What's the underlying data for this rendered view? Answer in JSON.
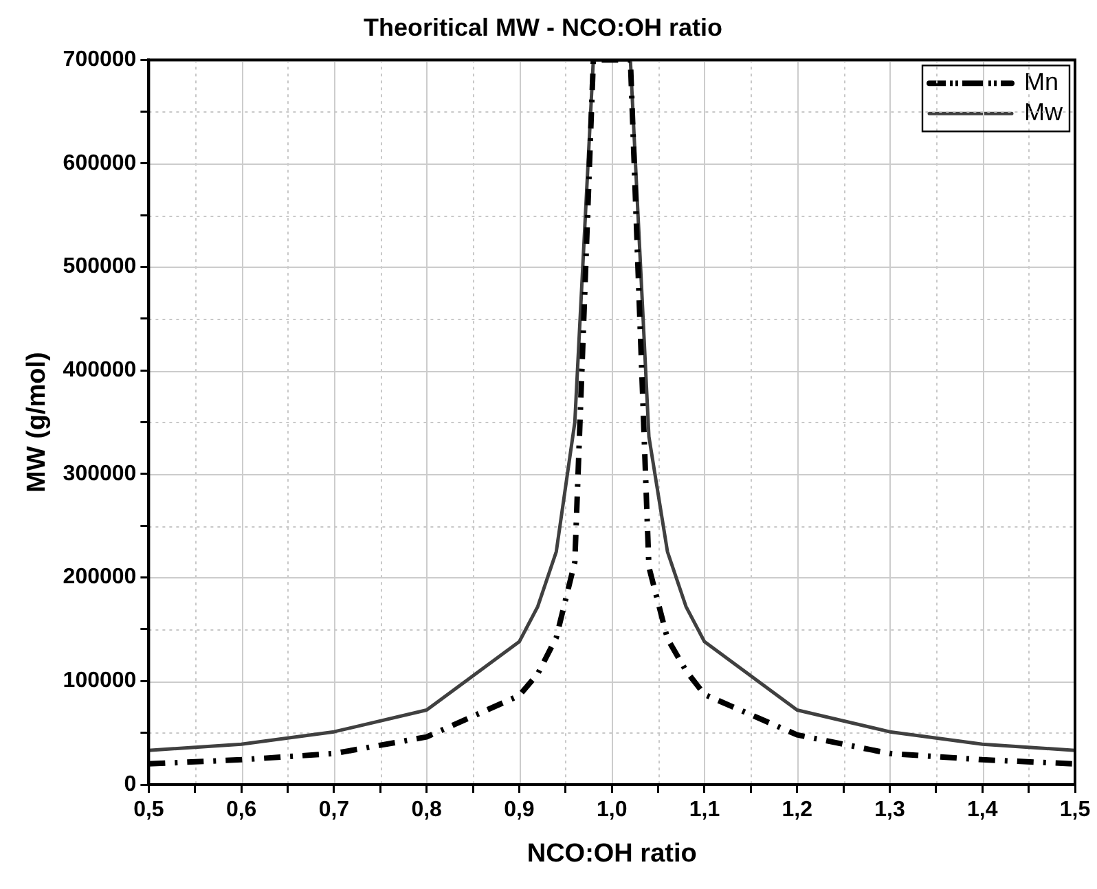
{
  "chart_data": {
    "type": "line",
    "title": "Theoritical MW - NCO:OH ratio",
    "xlabel": "NCO:OH ratio",
    "ylabel": "MW (g/mol)",
    "x": [
      0.5,
      0.6,
      0.7,
      0.8,
      0.9,
      0.92,
      0.94,
      0.96,
      0.98,
      1.02,
      1.04,
      1.06,
      1.08,
      1.1,
      1.2,
      1.3,
      1.4,
      1.5
    ],
    "series": [
      {
        "name": "Mn",
        "color": "#000000",
        "line_style": "dashed",
        "values": [
          20000,
          24000,
          30000,
          46000,
          86000,
          107000,
          142000,
          215000,
          700000,
          700000,
          210000,
          141000,
          110000,
          87000,
          48000,
          30000,
          24000,
          20000
        ]
      },
      {
        "name": "Mw",
        "color": "#404040",
        "line_style": "solid",
        "values": [
          33000,
          39000,
          51000,
          72000,
          138000,
          172000,
          225000,
          350000,
          700000,
          700000,
          336000,
          225000,
          172000,
          138000,
          72000,
          51000,
          39000,
          33000
        ]
      }
    ],
    "xlim": [
      0.5,
      1.5
    ],
    "ylim": [
      0,
      700000
    ],
    "xticks": [
      {
        "value": 0.5,
        "label": "0,5"
      },
      {
        "value": 0.55,
        "label": null
      },
      {
        "value": 0.6,
        "label": "0,6"
      },
      {
        "value": 0.65,
        "label": null
      },
      {
        "value": 0.7,
        "label": "0,7"
      },
      {
        "value": 0.75,
        "label": null
      },
      {
        "value": 0.8,
        "label": "0,8"
      },
      {
        "value": 0.85,
        "label": null
      },
      {
        "value": 0.9,
        "label": "0,9"
      },
      {
        "value": 0.95,
        "label": null
      },
      {
        "value": 1.0,
        "label": "1,0"
      },
      {
        "value": 1.05,
        "label": null
      },
      {
        "value": 1.1,
        "label": "1,1"
      },
      {
        "value": 1.15,
        "label": null
      },
      {
        "value": 1.2,
        "label": "1,2"
      },
      {
        "value": 1.25,
        "label": null
      },
      {
        "value": 1.3,
        "label": "1,3"
      },
      {
        "value": 1.35,
        "label": null
      },
      {
        "value": 1.4,
        "label": "1,4"
      },
      {
        "value": 1.45,
        "label": null
      },
      {
        "value": 1.5,
        "label": "1,5"
      }
    ],
    "yticks": [
      0,
      {
        "value": 50000,
        "label": null
      },
      100000,
      {
        "value": 150000,
        "label": null
      },
      200000,
      {
        "value": 250000,
        "label": null
      },
      300000,
      {
        "value": 350000,
        "label": null
      },
      400000,
      {
        "value": 450000,
        "label": null
      },
      500000,
      {
        "value": 550000,
        "label": null
      },
      600000,
      {
        "value": 650000,
        "label": null
      },
      700000
    ],
    "grid": true,
    "legend": "top right",
    "marker": "none"
  }
}
